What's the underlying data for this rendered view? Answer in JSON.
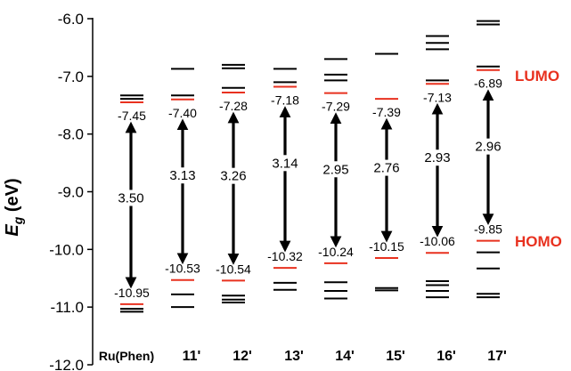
{
  "chart_data": {
    "type": "energy-level-diagram",
    "ylabel_main": "E",
    "ylabel_sub": "g",
    "ylabel_unit": " (eV)",
    "ylim": [
      -12.0,
      -6.0
    ],
    "yticks": [
      "-6.0",
      "-7.0",
      "-8.0",
      "-9.0",
      "-10.0",
      "-11.0",
      "-12.0"
    ],
    "ytick_values": [
      -6.0,
      -7.0,
      -8.0,
      -9.0,
      -10.0,
      -11.0,
      -12.0
    ],
    "categories": [
      "Ru(Phen)",
      "11'",
      "12'",
      "13'",
      "14'",
      "15'",
      "16'",
      "17'"
    ],
    "lumo_label": "LUMO",
    "homo_label": "HOMO",
    "highlight_color": "#e8311f",
    "level_color": "#000000",
    "compounds": [
      {
        "name": "Ru(Phen)",
        "lumo": -7.45,
        "homo": -10.95,
        "lumo_text": "-7.45",
        "homo_text": "-10.95",
        "gap": "3.50",
        "upper_levels": [
          -7.33,
          -7.39
        ],
        "lower_levels": [
          -11.03,
          -11.08
        ]
      },
      {
        "name": "11'",
        "lumo": -7.4,
        "homo": -10.53,
        "lumo_text": "-7.40",
        "homo_text": "-10.53",
        "gap": "3.13",
        "upper_levels": [
          -6.87,
          -7.33
        ],
        "lower_levels": [
          -10.78,
          -11.0
        ]
      },
      {
        "name": "12'",
        "lumo": -7.28,
        "homo": -10.54,
        "lumo_text": "-7.28",
        "homo_text": "-10.54",
        "gap": "3.26",
        "upper_levels": [
          -6.8,
          -6.86,
          -7.2
        ],
        "lower_levels": [
          -10.8,
          -10.87,
          -10.92
        ]
      },
      {
        "name": "13'",
        "lumo": -7.18,
        "homo": -10.32,
        "lumo_text": "-7.18",
        "homo_text": "-10.32",
        "gap": "3.14",
        "upper_levels": [
          -6.87,
          -7.1
        ],
        "lower_levels": [
          -10.58,
          -10.7
        ]
      },
      {
        "name": "14'",
        "lumo": -7.29,
        "homo": -10.24,
        "lumo_text": "-7.29",
        "homo_text": "-10.24",
        "gap": "2.95",
        "upper_levels": [
          -6.7,
          -6.97,
          -7.07
        ],
        "lower_levels": [
          -10.57,
          -10.72,
          -10.85
        ]
      },
      {
        "name": "15'",
        "lumo": -7.39,
        "homo": -10.15,
        "lumo_text": "-7.39",
        "homo_text": "-10.15",
        "gap": "2.76",
        "upper_levels": [
          -6.61
        ],
        "lower_levels": [
          -10.67,
          -10.71
        ]
      },
      {
        "name": "16'",
        "lumo": -7.13,
        "homo": -10.06,
        "lumo_text": "-7.13",
        "homo_text": "-10.06",
        "gap": "2.93",
        "upper_levels": [
          -6.3,
          -6.42,
          -6.53,
          -7.07
        ],
        "lower_levels": [
          -10.55,
          -10.62,
          -10.72,
          -10.83
        ]
      },
      {
        "name": "17'",
        "lumo": -6.89,
        "homo": -9.85,
        "lumo_text": "-6.89",
        "homo_text": "-9.85",
        "gap": "2.96",
        "upper_levels": [
          -6.04,
          -6.1,
          -6.83
        ],
        "lower_levels": [
          -10.05,
          -10.33,
          -10.77,
          -10.83
        ]
      }
    ]
  }
}
